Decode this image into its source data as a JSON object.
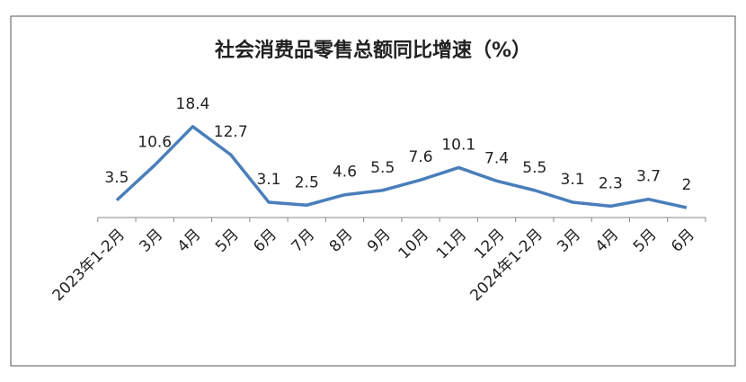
{
  "chart_data": {
    "type": "line",
    "title": "社会消费品零售总额同比增速（%）",
    "categories": [
      "2023年1-2月",
      "3月",
      "4月",
      "5月",
      "6月",
      "7月",
      "8月",
      "9月",
      "10月",
      "11月",
      "12月",
      "2024年1-2月",
      "3月",
      "4月",
      "5月",
      "6月"
    ],
    "values": [
      3.5,
      10.6,
      18.4,
      12.7,
      3.1,
      2.5,
      4.6,
      5.5,
      7.6,
      10.1,
      7.4,
      5.5,
      3.1,
      2.3,
      3.7,
      2
    ],
    "color": "#4a7ebb",
    "ylim": [
      0,
      20
    ]
  }
}
